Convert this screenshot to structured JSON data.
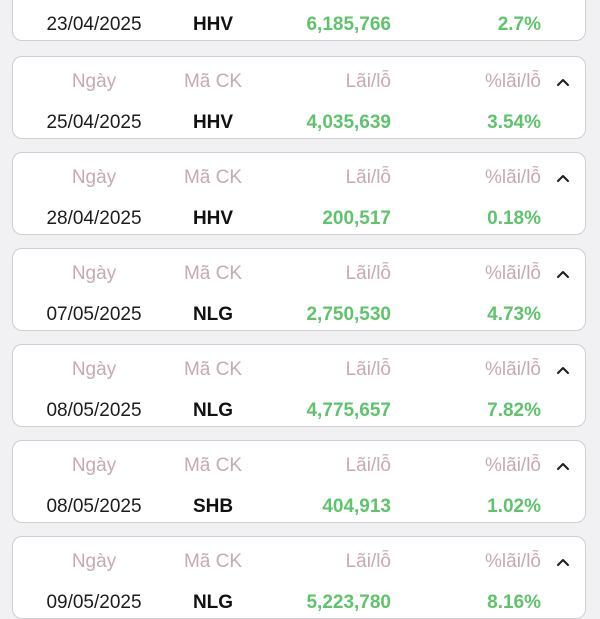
{
  "headers": {
    "date": "Ngày",
    "code": "Mã CK",
    "pl": "Lãi/lỗ",
    "pct": "%lãi/lỗ"
  },
  "rows": [
    {
      "date": "23/04/2025",
      "code": "HHV",
      "pl": "6,185,766",
      "pct": "2.7%"
    },
    {
      "date": "25/04/2025",
      "code": "HHV",
      "pl": "4,035,639",
      "pct": "3.54%"
    },
    {
      "date": "28/04/2025",
      "code": "HHV",
      "pl": "200,517",
      "pct": "0.18%"
    },
    {
      "date": "07/05/2025",
      "code": "NLG",
      "pl": "2,750,530",
      "pct": "4.73%"
    },
    {
      "date": "08/05/2025",
      "code": "NLG",
      "pl": "4,775,657",
      "pct": "7.82%"
    },
    {
      "date": "08/05/2025",
      "code": "SHB",
      "pl": "404,913",
      "pct": "1.02%"
    },
    {
      "date": "09/05/2025",
      "code": "NLG",
      "pl": "5,223,780",
      "pct": "8.16%"
    }
  ],
  "icons": {
    "collapse": "chevron-up-icon"
  },
  "colors": {
    "gain": "#5ec46b",
    "header_label": "#c7a9b4",
    "card_border": "#cfcfd3",
    "background": "#f1f1f3"
  }
}
